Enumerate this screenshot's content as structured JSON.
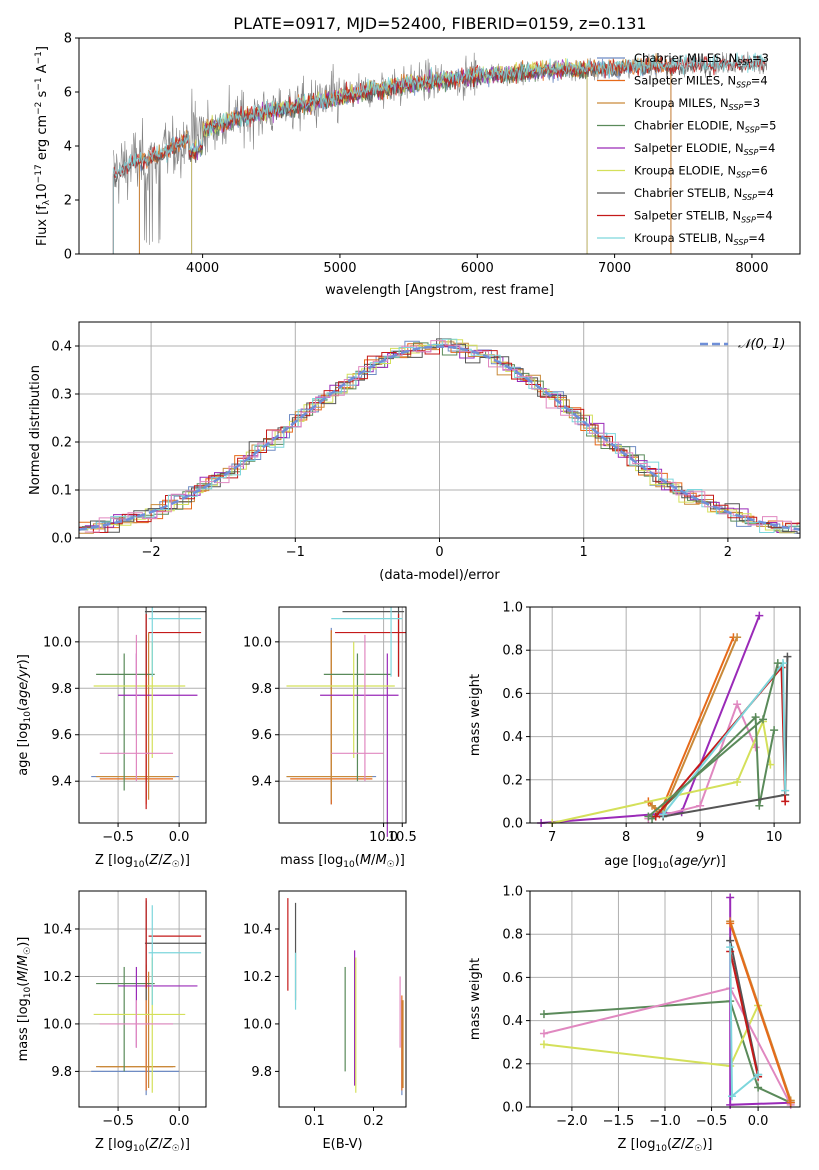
{
  "title": "PLATE=0917, MJD=52400, FIBERID=0159, z=0.131",
  "colors": {
    "chabrier_miles": "#6f8cc4",
    "salpeter_miles": "#e66a1a",
    "kroupa_miles": "#c98a3a",
    "chabrier_elodie": "#5a8a5a",
    "salpeter_elodie": "#9a2ab8",
    "kroupa_elodie": "#d4e05a",
    "chabrier_stelib": "#555555",
    "salpeter_stelib": "#c41a1a",
    "kroupa_stelib": "#7dd6dc",
    "pink": "#e088c0",
    "data": "#808080",
    "normal": "#6f8fd8"
  },
  "chart_data": [
    {
      "id": "spectrum",
      "type": "line",
      "xlabel": "wavelength [Angstrom, rest frame]",
      "ylabel": "Flux [f_λ 10^-17 erg cm^-2 s^-1 A^-1]",
      "xlim": [
        3100,
        8350
      ],
      "ylim": [
        0,
        8
      ],
      "xticks": [
        4000,
        5000,
        6000,
        7000,
        8000
      ],
      "yticks": [
        0,
        2,
        4,
        6,
        8
      ],
      "legend": [
        {
          "name": "Chabrier MILES, N_SSP=3",
          "color_key": "chabrier_miles"
        },
        {
          "name": "Salpeter MILES, N_SSP=4",
          "color_key": "salpeter_miles"
        },
        {
          "name": "Kroupa MILES, N_SSP=3",
          "color_key": "kroupa_miles"
        },
        {
          "name": "Chabrier ELODIE, N_SSP=5",
          "color_key": "chabrier_elodie"
        },
        {
          "name": "Salpeter ELODIE, N_SSP=4",
          "color_key": "salpeter_elodie"
        },
        {
          "name": "Kroupa ELODIE, N_SSP=6",
          "color_key": "kroupa_elodie"
        },
        {
          "name": "Chabrier STELIB, N_SSP=4",
          "color_key": "chabrier_stelib"
        },
        {
          "name": "Salpeter STELIB, N_SSP=4",
          "color_key": "salpeter_stelib"
        },
        {
          "name": "Kroupa STELIB, N_SSP=4",
          "color_key": "kroupa_stelib"
        }
      ],
      "continuum": [
        [
          3350,
          3.0
        ],
        [
          3500,
          3.4
        ],
        [
          3700,
          3.7
        ],
        [
          3900,
          4.3
        ],
        [
          4000,
          4.6
        ],
        [
          4300,
          5.1
        ],
        [
          4600,
          5.4
        ],
        [
          5000,
          5.8
        ],
        [
          5500,
          6.3
        ],
        [
          6000,
          6.6
        ],
        [
          6500,
          6.8
        ],
        [
          7000,
          6.9
        ],
        [
          7500,
          7.0
        ],
        [
          8100,
          7.1
        ]
      ]
    },
    {
      "id": "residuals",
      "type": "histogram",
      "xlabel": "(data-model)/error",
      "ylabel": "Normed distribution",
      "xlim": [
        -2.5,
        2.5
      ],
      "ylim": [
        0,
        0.45
      ],
      "xticks": [
        -2,
        -1,
        0,
        1,
        2
      ],
      "yticks": [
        0.0,
        0.1,
        0.2,
        0.3,
        0.4
      ],
      "legend": "𝒩(0, 1)",
      "legend_position": "top-right"
    },
    {
      "id": "age_vs_Z",
      "type": "errorbar",
      "xlabel": "Z [log10(Z/Z☉)]",
      "ylabel": "age  [log10(age/yr)]",
      "xlim": [
        -0.82,
        0.22
      ],
      "ylim": [
        9.22,
        10.15
      ],
      "xticks": [
        -0.5,
        0.0
      ],
      "yticks": [
        9.4,
        9.6,
        9.8,
        10.0
      ]
    },
    {
      "id": "age_vs_mass",
      "type": "errorbar",
      "xlabel": "mass [log10(M/M☉)]",
      "ylabel": "",
      "xlim": [
        7.2,
        10.6
      ],
      "ylim": [
        9.22,
        10.15
      ],
      "xticks": [
        10.0,
        10.5
      ],
      "yticks": [
        9.4,
        9.6,
        9.8,
        10.0
      ]
    },
    {
      "id": "weight_vs_age",
      "type": "line",
      "xlabel": "age  [log10(age/yr)]",
      "ylabel": "mass weight",
      "xlim": [
        6.7,
        10.35
      ],
      "ylim": [
        0,
        1
      ],
      "xticks": [
        7,
        8,
        9,
        10
      ],
      "yticks": [
        0.0,
        0.2,
        0.4,
        0.6,
        0.8,
        1.0
      ]
    },
    {
      "id": "mass_vs_Z",
      "type": "errorbar",
      "xlabel": "Z [log10(Z/Z☉)]",
      "ylabel": "mass [log10(M/M☉)]",
      "xlim": [
        -0.82,
        0.22
      ],
      "ylim": [
        9.65,
        10.56
      ],
      "xticks": [
        -0.5,
        0.0
      ],
      "yticks": [
        9.8,
        10.0,
        10.2,
        10.4
      ]
    },
    {
      "id": "mass_vs_EBV",
      "type": "errorbar",
      "xlabel": "E(B-V)",
      "ylabel": "",
      "xlim": [
        0.04,
        0.255
      ],
      "ylim": [
        9.65,
        10.56
      ],
      "xticks": [
        0.1,
        0.2
      ],
      "yticks": [
        9.8,
        10.0,
        10.2,
        10.4
      ]
    },
    {
      "id": "weight_vs_Z",
      "type": "line",
      "xlabel": "Z [log10(Z/Z☉)]",
      "ylabel": "mass weight",
      "xlim": [
        -2.45,
        0.45
      ],
      "ylim": [
        0,
        1
      ],
      "xticks": [
        -2.0,
        -1.5,
        -1.0,
        -0.5,
        0.0
      ],
      "yticks": [
        0.0,
        0.2,
        0.4,
        0.6,
        0.8,
        1.0
      ]
    }
  ]
}
